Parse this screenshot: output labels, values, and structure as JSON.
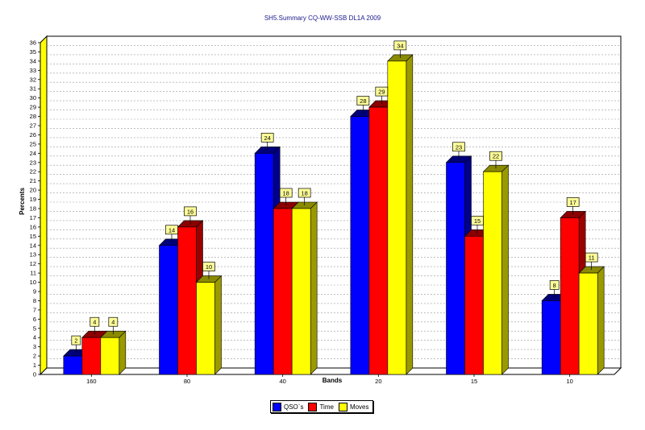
{
  "chart_data": {
    "type": "bar",
    "title": "SH5.Summary CQ-WW-SSB DL1A 2009",
    "xlabel": "Bands",
    "ylabel": "Percents",
    "categories": [
      "160",
      "80",
      "40",
      "20",
      "15",
      "10"
    ],
    "ylim": [
      0,
      36
    ],
    "grid": true,
    "legend_position": "bottom-center",
    "series": [
      {
        "name": "QSO`s",
        "color": "#0000ff",
        "values": [
          2,
          14,
          24,
          28,
          23,
          8
        ]
      },
      {
        "name": "Time",
        "color": "#ff0000",
        "values": [
          4,
          16,
          18,
          29,
          15,
          17
        ]
      },
      {
        "name": "Moves",
        "color": "#ffff00",
        "values": [
          4,
          10,
          18,
          34,
          22,
          11
        ]
      }
    ]
  }
}
